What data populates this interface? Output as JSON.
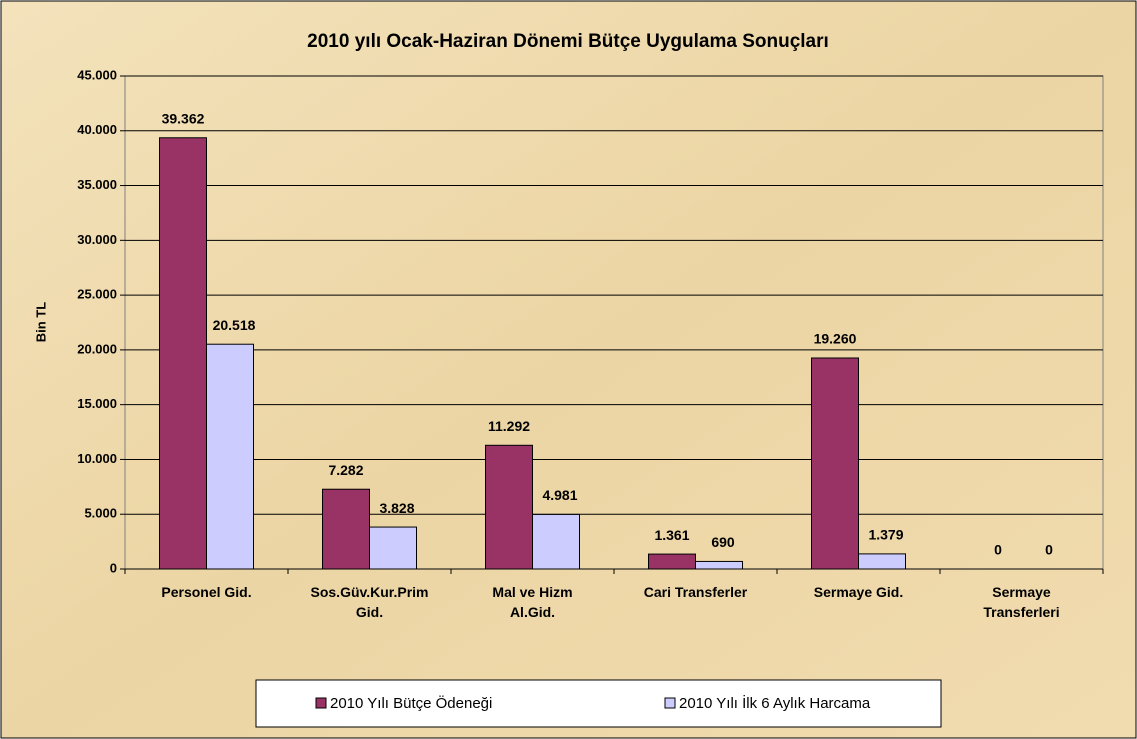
{
  "chart_data": {
    "type": "bar",
    "title": "2010 yılı Ocak-Haziran Dönemi Bütçe Uygulama Sonuçları",
    "y_label": "Bin TL",
    "categories": [
      "Personel Gid.",
      "Sos.Güv.Kur.Prim Gid.",
      "Mal ve Hizm Al.Gid.",
      "Cari Transferler",
      "Sermaye Gid.",
      "Sermaye Transferleri"
    ],
    "series": [
      {
        "name": "2010 Yılı Bütçe Ödeneği",
        "color": "#993366",
        "values": [
          39362,
          7282,
          11292,
          1361,
          19260,
          0
        ],
        "value_labels": [
          "39.362",
          "7.282",
          "11.292",
          "1.361",
          "19.260",
          "0"
        ]
      },
      {
        "name": "2010 Yılı İlk 6 Aylık Harcama",
        "color": "#ccccff",
        "values": [
          20518,
          3828,
          4981,
          690,
          1379,
          0
        ],
        "value_labels": [
          "20.518",
          "3.828",
          "4.981",
          "690",
          "1.379",
          "0"
        ]
      }
    ],
    "ylim": [
      0,
      45000
    ],
    "yticks": [
      0,
      {
        "value": 5000,
        "label": "5.000"
      },
      {
        "value": 10000,
        "label": "10.000"
      },
      {
        "value": 15000,
        "label": "15.000"
      },
      {
        "value": 20000,
        "label": "20.000"
      },
      {
        "value": 25000,
        "label": "25.000"
      },
      {
        "value": 30000,
        "label": "30.000"
      },
      {
        "value": 35000,
        "label": "35.000"
      },
      {
        "value": 40000,
        "label": "40.000"
      },
      {
        "value": 45000,
        "label": "45.000"
      }
    ],
    "grid": true,
    "legend": "bottom"
  }
}
